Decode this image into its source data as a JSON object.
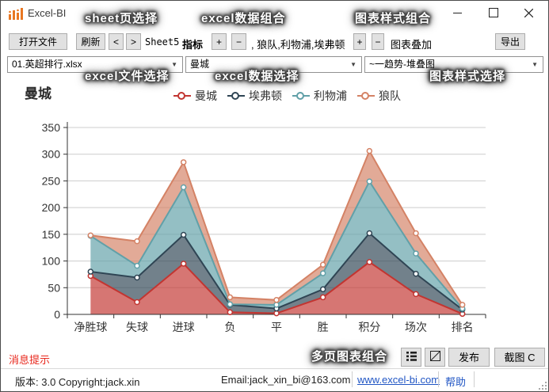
{
  "window": {
    "title": "Excel-BI"
  },
  "annotations": {
    "sheet_select": "sheet页选择",
    "excel_data_combo": "excel数据组合",
    "chart_style_combo": "图表样式组合",
    "excel_file_select": "excel文件选择",
    "excel_data_select": "excel数据选择",
    "chart_style_select": "图表样式选择",
    "multi_page_combo": "多页图表组合"
  },
  "toolbar": {
    "open_file": "打开文件",
    "refresh": "刷新",
    "prev": "<",
    "next": ">",
    "sheet_name": "Sheet5",
    "indicator_label": "指标",
    "plus": "+",
    "minus": "−",
    "indicator_value": ", 狼队,利物浦,埃弗顿",
    "overlay_label": "图表叠加",
    "export": "导出"
  },
  "selectors": {
    "file": "01.英超排行.xlsx",
    "data": "曼城",
    "style": "~一趋势-堆叠图"
  },
  "chart_data": {
    "type": "area",
    "stacked": true,
    "title": "曼城",
    "categories": [
      "净胜球",
      "失球",
      "进球",
      "负",
      "平",
      "胜",
      "积分",
      "场次",
      "排名"
    ],
    "series": [
      {
        "name": "曼城",
        "color": "#c23531",
        "values": [
          72,
          23,
          95,
          4,
          2,
          32,
          98,
          38,
          1
        ]
      },
      {
        "name": "埃弗顿",
        "color": "#2f4554",
        "values": [
          8,
          46,
          54,
          14,
          9,
          15,
          54,
          38,
          8
        ]
      },
      {
        "name": "利物浦",
        "color": "#61a0a8",
        "values": [
          67,
          22,
          89,
          1,
          7,
          30,
          97,
          38,
          2
        ]
      },
      {
        "name": "狼队",
        "color": "#d48265",
        "values": [
          1,
          46,
          47,
          13,
          9,
          16,
          57,
          38,
          7
        ]
      }
    ],
    "ylim": [
      0,
      350
    ],
    "ytick_interval": 50,
    "grid": true,
    "legend_position": "top",
    "area_opacity": 0.68
  },
  "footer": {
    "message": "消息提示",
    "publish": "发布",
    "screenshot": "截图 C"
  },
  "statusbar": {
    "version": "版本: 3.0  Copyright:jack.xin",
    "email": "Email:jack_xin_bi@163.com",
    "website": "www.excel-bi.com",
    "help": "帮助"
  },
  "colors": {
    "link": "#2156c4",
    "message_red": "#e8271c",
    "annotation_glow": "#3a3a3a",
    "app_icon_orange": "#e87722",
    "axis": "#333333",
    "gridline": "#cccccc"
  }
}
